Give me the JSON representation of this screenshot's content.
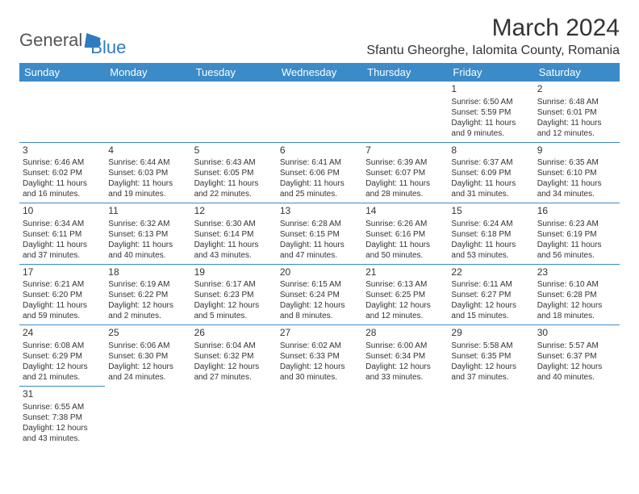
{
  "logo": {
    "text_general": "General",
    "text_blue": "Blue"
  },
  "title": "March 2024",
  "location": "Sfantu Gheorghe, Ialomita County, Romania",
  "day_headers": [
    "Sunday",
    "Monday",
    "Tuesday",
    "Wednesday",
    "Thursday",
    "Friday",
    "Saturday"
  ],
  "colors": {
    "header_bg": "#3b8bc8",
    "header_text": "#ffffff",
    "row_border": "#3b8bc8",
    "logo_blue": "#2f7bbf",
    "body_text": "#333333"
  },
  "weeks": [
    [
      null,
      null,
      null,
      null,
      null,
      {
        "n": "1",
        "sunrise": "Sunrise: 6:50 AM",
        "sunset": "Sunset: 5:59 PM",
        "daylight": "Daylight: 11 hours and 9 minutes."
      },
      {
        "n": "2",
        "sunrise": "Sunrise: 6:48 AM",
        "sunset": "Sunset: 6:01 PM",
        "daylight": "Daylight: 11 hours and 12 minutes."
      }
    ],
    [
      {
        "n": "3",
        "sunrise": "Sunrise: 6:46 AM",
        "sunset": "Sunset: 6:02 PM",
        "daylight": "Daylight: 11 hours and 16 minutes."
      },
      {
        "n": "4",
        "sunrise": "Sunrise: 6:44 AM",
        "sunset": "Sunset: 6:03 PM",
        "daylight": "Daylight: 11 hours and 19 minutes."
      },
      {
        "n": "5",
        "sunrise": "Sunrise: 6:43 AM",
        "sunset": "Sunset: 6:05 PM",
        "daylight": "Daylight: 11 hours and 22 minutes."
      },
      {
        "n": "6",
        "sunrise": "Sunrise: 6:41 AM",
        "sunset": "Sunset: 6:06 PM",
        "daylight": "Daylight: 11 hours and 25 minutes."
      },
      {
        "n": "7",
        "sunrise": "Sunrise: 6:39 AM",
        "sunset": "Sunset: 6:07 PM",
        "daylight": "Daylight: 11 hours and 28 minutes."
      },
      {
        "n": "8",
        "sunrise": "Sunrise: 6:37 AM",
        "sunset": "Sunset: 6:09 PM",
        "daylight": "Daylight: 11 hours and 31 minutes."
      },
      {
        "n": "9",
        "sunrise": "Sunrise: 6:35 AM",
        "sunset": "Sunset: 6:10 PM",
        "daylight": "Daylight: 11 hours and 34 minutes."
      }
    ],
    [
      {
        "n": "10",
        "sunrise": "Sunrise: 6:34 AM",
        "sunset": "Sunset: 6:11 PM",
        "daylight": "Daylight: 11 hours and 37 minutes."
      },
      {
        "n": "11",
        "sunrise": "Sunrise: 6:32 AM",
        "sunset": "Sunset: 6:13 PM",
        "daylight": "Daylight: 11 hours and 40 minutes."
      },
      {
        "n": "12",
        "sunrise": "Sunrise: 6:30 AM",
        "sunset": "Sunset: 6:14 PM",
        "daylight": "Daylight: 11 hours and 43 minutes."
      },
      {
        "n": "13",
        "sunrise": "Sunrise: 6:28 AM",
        "sunset": "Sunset: 6:15 PM",
        "daylight": "Daylight: 11 hours and 47 minutes."
      },
      {
        "n": "14",
        "sunrise": "Sunrise: 6:26 AM",
        "sunset": "Sunset: 6:16 PM",
        "daylight": "Daylight: 11 hours and 50 minutes."
      },
      {
        "n": "15",
        "sunrise": "Sunrise: 6:24 AM",
        "sunset": "Sunset: 6:18 PM",
        "daylight": "Daylight: 11 hours and 53 minutes."
      },
      {
        "n": "16",
        "sunrise": "Sunrise: 6:23 AM",
        "sunset": "Sunset: 6:19 PM",
        "daylight": "Daylight: 11 hours and 56 minutes."
      }
    ],
    [
      {
        "n": "17",
        "sunrise": "Sunrise: 6:21 AM",
        "sunset": "Sunset: 6:20 PM",
        "daylight": "Daylight: 11 hours and 59 minutes."
      },
      {
        "n": "18",
        "sunrise": "Sunrise: 6:19 AM",
        "sunset": "Sunset: 6:22 PM",
        "daylight": "Daylight: 12 hours and 2 minutes."
      },
      {
        "n": "19",
        "sunrise": "Sunrise: 6:17 AM",
        "sunset": "Sunset: 6:23 PM",
        "daylight": "Daylight: 12 hours and 5 minutes."
      },
      {
        "n": "20",
        "sunrise": "Sunrise: 6:15 AM",
        "sunset": "Sunset: 6:24 PM",
        "daylight": "Daylight: 12 hours and 8 minutes."
      },
      {
        "n": "21",
        "sunrise": "Sunrise: 6:13 AM",
        "sunset": "Sunset: 6:25 PM",
        "daylight": "Daylight: 12 hours and 12 minutes."
      },
      {
        "n": "22",
        "sunrise": "Sunrise: 6:11 AM",
        "sunset": "Sunset: 6:27 PM",
        "daylight": "Daylight: 12 hours and 15 minutes."
      },
      {
        "n": "23",
        "sunrise": "Sunrise: 6:10 AM",
        "sunset": "Sunset: 6:28 PM",
        "daylight": "Daylight: 12 hours and 18 minutes."
      }
    ],
    [
      {
        "n": "24",
        "sunrise": "Sunrise: 6:08 AM",
        "sunset": "Sunset: 6:29 PM",
        "daylight": "Daylight: 12 hours and 21 minutes."
      },
      {
        "n": "25",
        "sunrise": "Sunrise: 6:06 AM",
        "sunset": "Sunset: 6:30 PM",
        "daylight": "Daylight: 12 hours and 24 minutes."
      },
      {
        "n": "26",
        "sunrise": "Sunrise: 6:04 AM",
        "sunset": "Sunset: 6:32 PM",
        "daylight": "Daylight: 12 hours and 27 minutes."
      },
      {
        "n": "27",
        "sunrise": "Sunrise: 6:02 AM",
        "sunset": "Sunset: 6:33 PM",
        "daylight": "Daylight: 12 hours and 30 minutes."
      },
      {
        "n": "28",
        "sunrise": "Sunrise: 6:00 AM",
        "sunset": "Sunset: 6:34 PM",
        "daylight": "Daylight: 12 hours and 33 minutes."
      },
      {
        "n": "29",
        "sunrise": "Sunrise: 5:58 AM",
        "sunset": "Sunset: 6:35 PM",
        "daylight": "Daylight: 12 hours and 37 minutes."
      },
      {
        "n": "30",
        "sunrise": "Sunrise: 5:57 AM",
        "sunset": "Sunset: 6:37 PM",
        "daylight": "Daylight: 12 hours and 40 minutes."
      }
    ],
    [
      {
        "n": "31",
        "sunrise": "Sunrise: 6:55 AM",
        "sunset": "Sunset: 7:38 PM",
        "daylight": "Daylight: 12 hours and 43 minutes."
      },
      null,
      null,
      null,
      null,
      null,
      null
    ]
  ]
}
